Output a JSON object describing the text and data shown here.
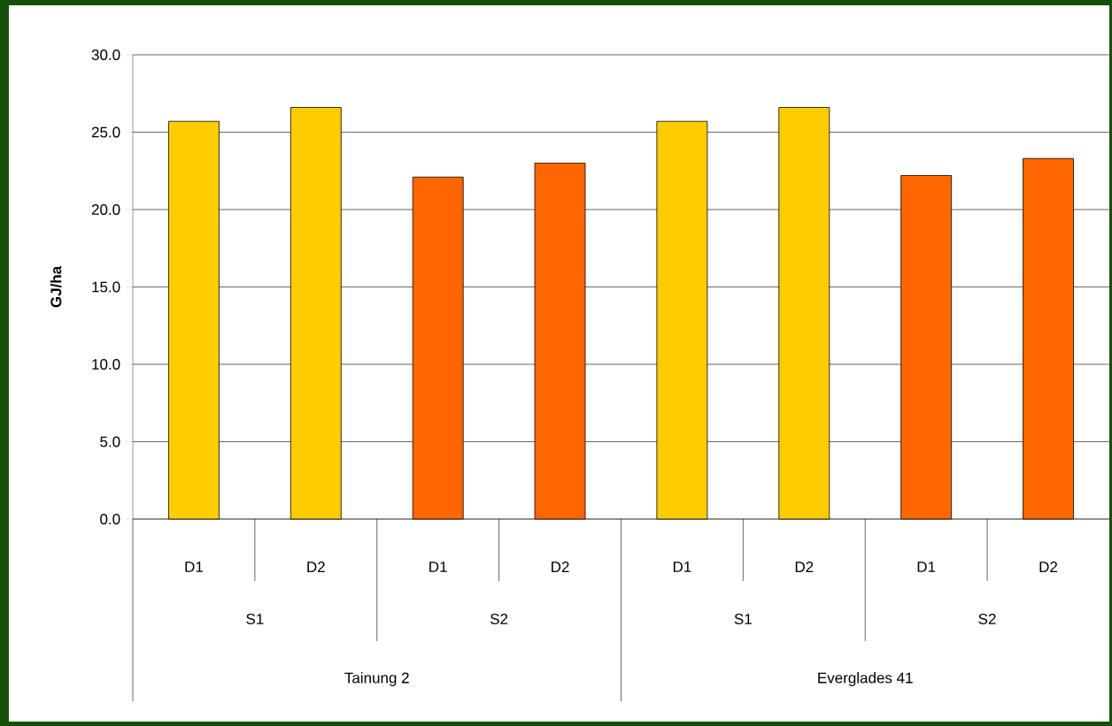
{
  "chart_data": {
    "type": "bar",
    "ylabel": "GJ/ha",
    "categories": [
      "D1",
      "D2",
      "D1",
      "D2",
      "D1",
      "D2",
      "D1",
      "D2"
    ],
    "values": [
      25.7,
      26.6,
      22.1,
      23.0,
      25.7,
      26.6,
      22.2,
      23.3
    ],
    "colors": [
      "#ffcc00",
      "#ffcc00",
      "#ff6600",
      "#ff6600",
      "#ffcc00",
      "#ffcc00",
      "#ff6600",
      "#ff6600"
    ],
    "annotations": [
      "S1",
      "S2",
      "S1",
      "S2",
      "Tainung 2",
      "Everglades 41"
    ],
    "ylim": [
      0,
      30
    ],
    "yticks": [
      {
        "value": 0,
        "label": "0.0"
      },
      {
        "value": 5,
        "label": "5.0"
      },
      {
        "value": 10,
        "label": "10.0"
      },
      {
        "value": 15,
        "label": "15.0"
      },
      {
        "value": 20,
        "label": "20.0"
      },
      {
        "value": 25,
        "label": "25.0"
      },
      {
        "value": 30,
        "label": "30.0"
      }
    ],
    "grid": "y"
  }
}
